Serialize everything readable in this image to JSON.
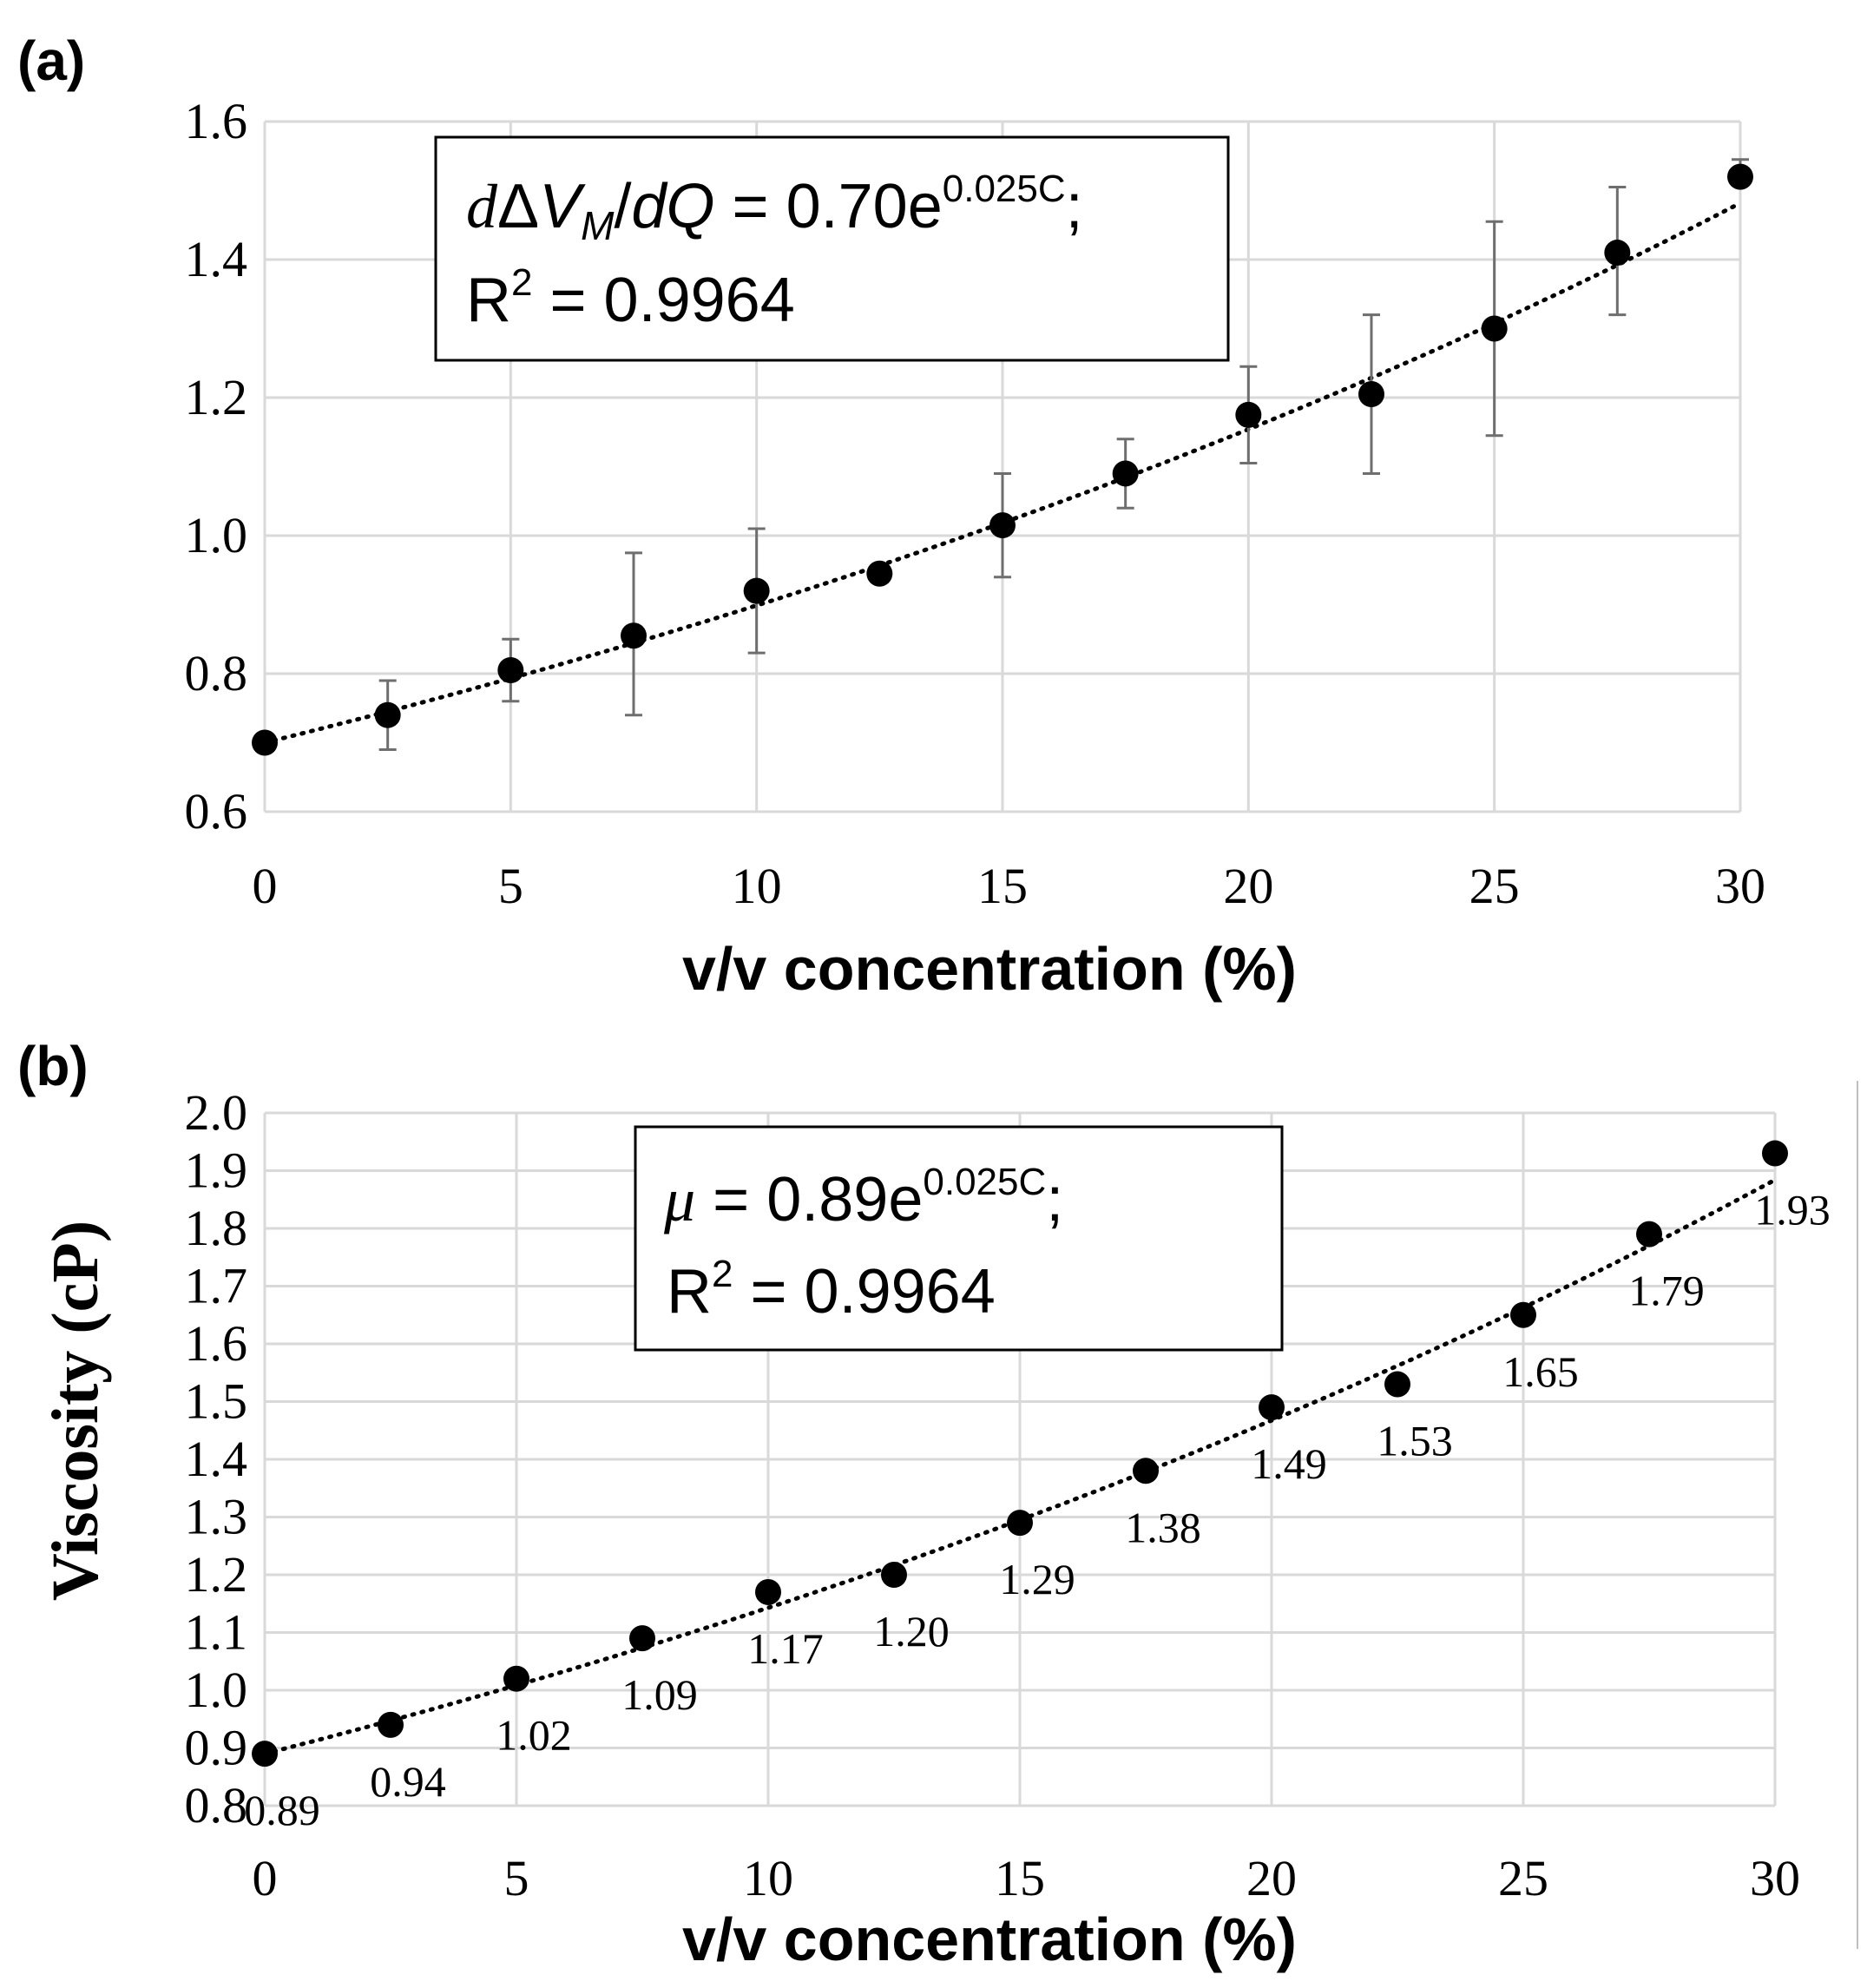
{
  "panel_labels": {
    "a": "(a)",
    "b": "(b)"
  },
  "colors": {
    "grid": "#d9d9d9",
    "marker": "#000000",
    "error_bar": "#6e6e6e",
    "trend": "#000000",
    "text": "#000000"
  },
  "chart_data": [
    {
      "id": "a",
      "type": "scatter",
      "title": "",
      "xlabel": "v/v concentration (%)",
      "ylabel": "",
      "xlim": [
        0,
        30
      ],
      "ylim": [
        0.6,
        1.6
      ],
      "xticks": [
        0,
        5,
        10,
        15,
        20,
        25,
        30
      ],
      "yticks": [
        0.6,
        0.8,
        1.0,
        1.2,
        1.4,
        1.6
      ],
      "ytick_labels": [
        "0.6",
        "0.8",
        "1.0",
        "1.2",
        "1.4",
        "1.6"
      ],
      "grid": true,
      "series": [
        {
          "name": "dΔV_M/dQ",
          "x": [
            0,
            2.5,
            5,
            7.5,
            10,
            12.5,
            15,
            17.5,
            20,
            22.5,
            25,
            27.5,
            30
          ],
          "y": [
            0.7,
            0.74,
            0.805,
            0.855,
            0.92,
            0.945,
            1.015,
            1.09,
            1.175,
            1.205,
            1.3,
            1.41,
            1.52
          ],
          "error_low": [
            0.7,
            0.69,
            0.76,
            0.74,
            0.83,
            0.945,
            0.94,
            1.04,
            1.105,
            1.09,
            1.145,
            1.32,
            1.52
          ],
          "error_high": [
            0.7,
            0.79,
            0.85,
            0.975,
            1.01,
            0.945,
            1.09,
            1.14,
            1.245,
            1.32,
            1.455,
            1.505,
            1.545
          ]
        }
      ],
      "trendline": {
        "type": "exponential",
        "a": 0.7,
        "b": 0.025,
        "style": "dotted"
      },
      "equation": {
        "lhs_d": "d",
        "lhs_delta": "Δ",
        "lhs_v": "V",
        "lhs_sub": "M",
        "lhs_slash": "/",
        "lhs_dq": "dQ",
        "rhs": " = 0.70e",
        "exp": "0.025C",
        "semi": ";",
        "r2_prefix": "R",
        "r2_sup": "2",
        "r2_value": " = 0.9964"
      }
    },
    {
      "id": "b",
      "type": "scatter",
      "title": "",
      "xlabel": "v/v concentration (%)",
      "ylabel": "Viscosity (cP)",
      "xlim": [
        0,
        30
      ],
      "ylim": [
        0.8,
        2.0
      ],
      "xticks": [
        0,
        5,
        10,
        15,
        20,
        25,
        30
      ],
      "yticks": [
        0.8,
        0.9,
        1.0,
        1.1,
        1.2,
        1.3,
        1.4,
        1.5,
        1.6,
        1.7,
        1.8,
        1.9,
        2.0
      ],
      "ytick_labels": [
        "0.8",
        "0.9",
        "1.0",
        "1.1",
        "1.2",
        "1.3",
        "1.4",
        "1.5",
        "1.6",
        "1.7",
        "1.8",
        "1.9",
        "2.0"
      ],
      "grid": true,
      "series": [
        {
          "name": "Viscosity",
          "x": [
            0,
            2.5,
            5,
            7.5,
            10,
            12.5,
            15,
            17.5,
            20,
            22.5,
            25,
            27.5,
            30
          ],
          "y": [
            0.89,
            0.94,
            1.02,
            1.09,
            1.17,
            1.2,
            1.29,
            1.38,
            1.49,
            1.53,
            1.65,
            1.79,
            1.93
          ],
          "labels": [
            "0.89",
            "0.94",
            "1.02",
            "1.09",
            "1.17",
            "1.20",
            "1.29",
            "1.38",
            "1.49",
            "1.53",
            "1.65",
            "1.79",
            "1.93"
          ]
        }
      ],
      "trendline": {
        "type": "exponential",
        "a": 0.89,
        "b": 0.025,
        "style": "dotted"
      },
      "equation": {
        "mu": "μ",
        "rhs": " = 0.89e",
        "exp": "0.025C",
        "semi": ";",
        "r2_prefix": "R",
        "r2_sup": "2",
        "r2_value": " = 0.9964"
      }
    }
  ]
}
